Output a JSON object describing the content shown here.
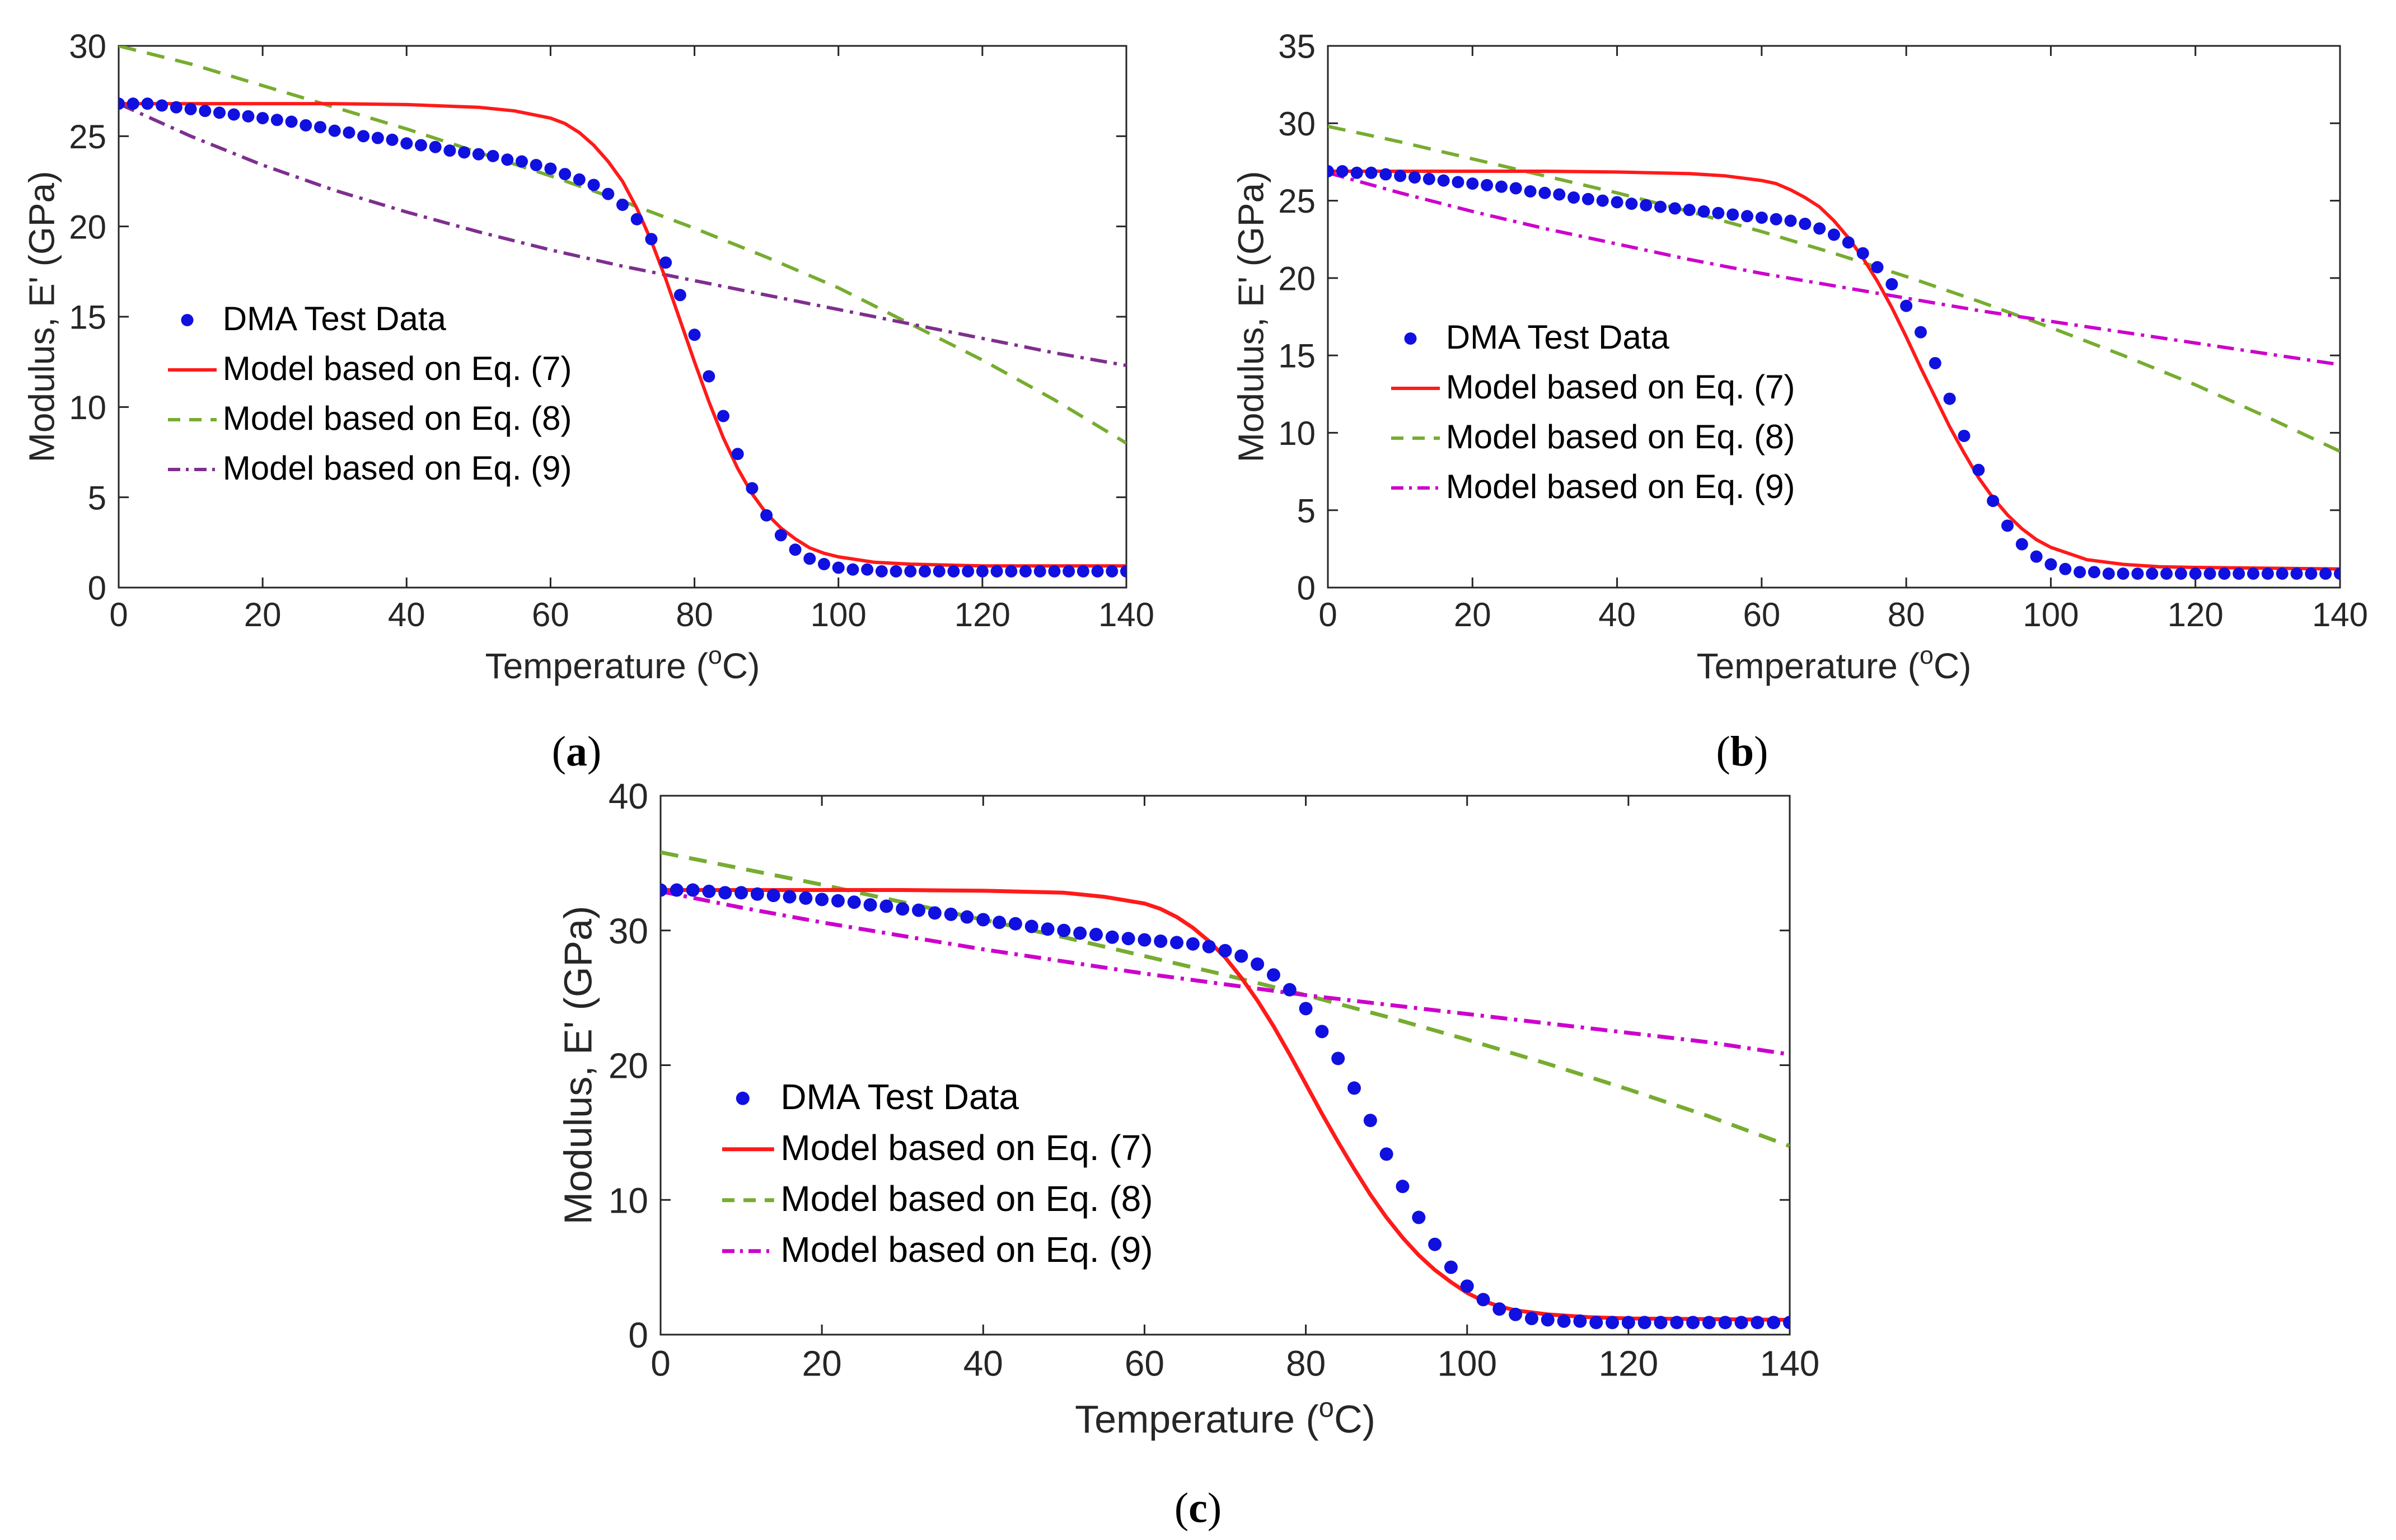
{
  "colors": {
    "dma": "#1010e0",
    "eq7": "#ff1a1a",
    "eq8": "#77ac30",
    "eq9_a": "#7e2f8e",
    "eq9_bc": "#cc00cc",
    "axis": "#262626"
  },
  "chart_data": [
    {
      "id": "a",
      "type": "line",
      "panel_label_open": "(",
      "panel_label_letter": "a",
      "panel_label_close": ")",
      "xlabel": "Temperature (",
      "xlabel_sup": "o",
      "xlabel_unit": "C)",
      "ylabel": "Modulus, E' (GPa)",
      "xlim": [
        0,
        140
      ],
      "ylim": [
        0,
        30
      ],
      "xticks": [
        0,
        20,
        40,
        60,
        80,
        100,
        120,
        140
      ],
      "yticks": [
        0,
        5,
        10,
        15,
        20,
        25,
        30
      ],
      "legend_position": "middle-left",
      "eq9_color_key": "eq9_a",
      "legend": [
        "DMA Test Data",
        "Model based on Eq. (7)",
        "Model based on Eq. (8)",
        "Model based on Eq. (9)"
      ],
      "series": [
        {
          "name": "DMA Test Data",
          "x": [
            0,
            2,
            4,
            6,
            8,
            10,
            12,
            14,
            16,
            18,
            20,
            22,
            24,
            26,
            28,
            30,
            32,
            34,
            36,
            38,
            40,
            42,
            44,
            46,
            48,
            50,
            52,
            54,
            56,
            58,
            60,
            62,
            64,
            66,
            68,
            70,
            72,
            74,
            76,
            78,
            80,
            82,
            84,
            86,
            88,
            90,
            92,
            94,
            96,
            98,
            100,
            102,
            104,
            106,
            108,
            110,
            112,
            114,
            116,
            118,
            120,
            122,
            124,
            126,
            128,
            130,
            132,
            134,
            136,
            138,
            140
          ],
          "y": [
            26.8,
            26.8,
            26.8,
            26.7,
            26.6,
            26.5,
            26.4,
            26.3,
            26.2,
            26.1,
            26.0,
            25.9,
            25.8,
            25.6,
            25.5,
            25.3,
            25.2,
            25.0,
            24.9,
            24.8,
            24.6,
            24.5,
            24.4,
            24.2,
            24.1,
            24.0,
            23.9,
            23.7,
            23.6,
            23.4,
            23.2,
            22.9,
            22.6,
            22.3,
            21.8,
            21.2,
            20.4,
            19.3,
            18.0,
            16.2,
            14.0,
            11.7,
            9.5,
            7.4,
            5.5,
            4.0,
            2.9,
            2.1,
            1.6,
            1.3,
            1.1,
            1.0,
            1.0,
            0.9,
            0.9,
            0.9,
            0.9,
            0.9,
            0.9,
            0.9,
            0.9,
            0.9,
            0.9,
            0.9,
            0.9,
            0.9,
            0.9,
            0.9,
            0.9,
            0.9,
            0.9
          ]
        },
        {
          "name": "Model based on Eq. (7)",
          "x": [
            0,
            10,
            20,
            30,
            40,
            50,
            55,
            60,
            62,
            64,
            66,
            68,
            70,
            72,
            74,
            76,
            78,
            80,
            82,
            84,
            86,
            88,
            90,
            92,
            94,
            96,
            98,
            100,
            105,
            110,
            115,
            120,
            130,
            140
          ],
          "y": [
            26.8,
            26.8,
            26.8,
            26.8,
            26.75,
            26.6,
            26.4,
            26.0,
            25.7,
            25.2,
            24.5,
            23.6,
            22.5,
            21.0,
            19.2,
            17.1,
            14.8,
            12.5,
            10.3,
            8.3,
            6.6,
            5.2,
            4.1,
            3.3,
            2.7,
            2.2,
            1.9,
            1.7,
            1.4,
            1.3,
            1.25,
            1.2,
            1.2,
            1.2
          ]
        },
        {
          "name": "Model based on Eq. (8)",
          "x": [
            0,
            10,
            20,
            30,
            40,
            50,
            60,
            70,
            80,
            90,
            100,
            110,
            120,
            130,
            140
          ],
          "y": [
            30.0,
            29.0,
            27.8,
            26.6,
            25.4,
            24.1,
            22.8,
            21.4,
            19.9,
            18.3,
            16.6,
            14.6,
            12.6,
            10.4,
            8.0
          ]
        },
        {
          "name": "Model based on Eq. (9)",
          "x": [
            0,
            10,
            20,
            30,
            40,
            50,
            60,
            70,
            80,
            90,
            100,
            110,
            120,
            130,
            140
          ],
          "y": [
            26.8,
            25.0,
            23.4,
            22.0,
            20.8,
            19.7,
            18.7,
            17.8,
            17.0,
            16.2,
            15.4,
            14.6,
            13.8,
            13.0,
            12.3
          ]
        }
      ]
    },
    {
      "id": "b",
      "type": "line",
      "panel_label_open": "(",
      "panel_label_letter": "b",
      "panel_label_close": ")",
      "xlabel": "Temperature (",
      "xlabel_sup": "o",
      "xlabel_unit": "C)",
      "ylabel": "Modulus, E' (GPa)",
      "xlim": [
        0,
        140
      ],
      "ylim": [
        0,
        35
      ],
      "xticks": [
        0,
        20,
        40,
        60,
        80,
        100,
        120,
        140
      ],
      "yticks": [
        0,
        5,
        10,
        15,
        20,
        25,
        30,
        35
      ],
      "legend_position": "middle-left",
      "eq9_color_key": "eq9_bc",
      "legend": [
        "DMA Test Data",
        "Model based on Eq. (7)",
        "Model based on Eq. (8)",
        "Model based on Eq. (9)"
      ],
      "series": [
        {
          "name": "DMA Test Data",
          "x": [
            0,
            2,
            4,
            6,
            8,
            10,
            12,
            14,
            16,
            18,
            20,
            22,
            24,
            26,
            28,
            30,
            32,
            34,
            36,
            38,
            40,
            42,
            44,
            46,
            48,
            50,
            52,
            54,
            56,
            58,
            60,
            62,
            64,
            66,
            68,
            70,
            72,
            74,
            76,
            78,
            80,
            82,
            84,
            86,
            88,
            90,
            92,
            94,
            96,
            98,
            100,
            102,
            104,
            106,
            108,
            110,
            112,
            114,
            116,
            118,
            120,
            122,
            124,
            126,
            128,
            130,
            132,
            134,
            136,
            138,
            140
          ],
          "y": [
            26.9,
            26.9,
            26.8,
            26.8,
            26.7,
            26.6,
            26.5,
            26.4,
            26.3,
            26.2,
            26.1,
            26.0,
            25.9,
            25.8,
            25.6,
            25.5,
            25.4,
            25.2,
            25.1,
            25.0,
            24.9,
            24.8,
            24.7,
            24.6,
            24.5,
            24.4,
            24.3,
            24.2,
            24.1,
            24.0,
            23.9,
            23.8,
            23.7,
            23.5,
            23.2,
            22.8,
            22.3,
            21.6,
            20.7,
            19.6,
            18.2,
            16.5,
            14.5,
            12.2,
            9.8,
            7.6,
            5.6,
            4.0,
            2.8,
            2.0,
            1.5,
            1.2,
            1.0,
            1.0,
            0.9,
            0.9,
            0.9,
            0.9,
            0.9,
            0.9,
            0.9,
            0.9,
            0.9,
            0.9,
            0.9,
            0.9,
            0.9,
            0.9,
            0.9,
            0.9,
            0.9
          ]
        },
        {
          "name": "Model based on Eq. (7)",
          "x": [
            0,
            10,
            20,
            30,
            40,
            50,
            55,
            60,
            62,
            64,
            66,
            68,
            70,
            72,
            74,
            76,
            78,
            80,
            82,
            84,
            86,
            88,
            90,
            92,
            94,
            96,
            98,
            100,
            105,
            110,
            115,
            120,
            130,
            140
          ],
          "y": [
            26.9,
            26.9,
            26.9,
            26.9,
            26.85,
            26.75,
            26.6,
            26.3,
            26.1,
            25.7,
            25.2,
            24.6,
            23.7,
            22.6,
            21.3,
            19.8,
            18.1,
            16.2,
            14.2,
            12.3,
            10.4,
            8.7,
            7.1,
            5.8,
            4.7,
            3.8,
            3.1,
            2.6,
            1.8,
            1.5,
            1.35,
            1.3,
            1.25,
            1.2
          ]
        },
        {
          "name": "Model based on Eq. (8)",
          "x": [
            0,
            10,
            20,
            30,
            40,
            50,
            60,
            70,
            80,
            90,
            100,
            110,
            120,
            130,
            140
          ],
          "y": [
            29.8,
            28.8,
            27.7,
            26.6,
            25.5,
            24.3,
            23.0,
            21.6,
            20.1,
            18.5,
            16.8,
            15.0,
            13.1,
            11.0,
            8.8
          ]
        },
        {
          "name": "Model based on Eq. (9)",
          "x": [
            0,
            10,
            20,
            30,
            40,
            50,
            60,
            70,
            80,
            90,
            100,
            110,
            120,
            130,
            140
          ],
          "y": [
            26.8,
            25.5,
            24.3,
            23.2,
            22.2,
            21.2,
            20.3,
            19.5,
            18.7,
            17.9,
            17.2,
            16.5,
            15.8,
            15.1,
            14.4
          ]
        }
      ]
    },
    {
      "id": "c",
      "type": "line",
      "panel_label_open": "(",
      "panel_label_letter": "c",
      "panel_label_close": ")",
      "xlabel": "Temperature (",
      "xlabel_sup": "o",
      "xlabel_unit": "C)",
      "ylabel": "Modulus, E' (GPa)",
      "xlim": [
        0,
        140
      ],
      "ylim": [
        0,
        40
      ],
      "xticks": [
        0,
        20,
        40,
        60,
        80,
        100,
        120,
        140
      ],
      "yticks": [
        0,
        10,
        20,
        30,
        40
      ],
      "legend_position": "middle-left",
      "eq9_color_key": "eq9_bc",
      "legend": [
        "DMA Test Data",
        "Model based on Eq. (7)",
        "Model based on Eq. (8)",
        "Model based on Eq. (9)"
      ],
      "series": [
        {
          "name": "DMA Test Data",
          "x": [
            0,
            2,
            4,
            6,
            8,
            10,
            12,
            14,
            16,
            18,
            20,
            22,
            24,
            26,
            28,
            30,
            32,
            34,
            36,
            38,
            40,
            42,
            44,
            46,
            48,
            50,
            52,
            54,
            56,
            58,
            60,
            62,
            64,
            66,
            68,
            70,
            72,
            74,
            76,
            78,
            80,
            82,
            84,
            86,
            88,
            90,
            92,
            94,
            96,
            98,
            100,
            102,
            104,
            106,
            108,
            110,
            112,
            114,
            116,
            118,
            120,
            122,
            124,
            126,
            128,
            130,
            132,
            134,
            136,
            138,
            140
          ],
          "y": [
            33.0,
            33.0,
            33.0,
            32.9,
            32.8,
            32.8,
            32.7,
            32.6,
            32.5,
            32.4,
            32.3,
            32.2,
            32.1,
            31.9,
            31.8,
            31.6,
            31.5,
            31.3,
            31.2,
            31.0,
            30.8,
            30.6,
            30.5,
            30.3,
            30.1,
            30.0,
            29.8,
            29.7,
            29.5,
            29.4,
            29.3,
            29.2,
            29.1,
            29.0,
            28.8,
            28.5,
            28.1,
            27.5,
            26.7,
            25.6,
            24.2,
            22.5,
            20.5,
            18.3,
            15.9,
            13.4,
            11.0,
            8.7,
            6.7,
            5.0,
            3.6,
            2.6,
            1.9,
            1.5,
            1.2,
            1.1,
            1.0,
            1.0,
            0.9,
            0.9,
            0.9,
            0.9,
            0.9,
            0.9,
            0.9,
            0.9,
            0.9,
            0.9,
            0.9,
            0.9,
            0.9
          ]
        },
        {
          "name": "Model based on Eq. (7)",
          "x": [
            0,
            10,
            20,
            30,
            40,
            50,
            55,
            60,
            62,
            64,
            66,
            68,
            70,
            72,
            74,
            76,
            78,
            80,
            82,
            84,
            86,
            88,
            90,
            92,
            94,
            96,
            98,
            100,
            102,
            104,
            106,
            110,
            115,
            120,
            130,
            140
          ],
          "y": [
            33.0,
            33.0,
            33.0,
            33.0,
            32.95,
            32.8,
            32.5,
            32.0,
            31.6,
            31.0,
            30.2,
            29.2,
            28.0,
            26.5,
            24.8,
            22.9,
            20.8,
            18.6,
            16.4,
            14.3,
            12.3,
            10.4,
            8.7,
            7.2,
            5.9,
            4.8,
            3.9,
            3.1,
            2.5,
            2.1,
            1.8,
            1.5,
            1.3,
            1.2,
            1.15,
            1.1
          ]
        },
        {
          "name": "Model based on Eq. (8)",
          "x": [
            0,
            10,
            20,
            30,
            40,
            50,
            60,
            70,
            80,
            90,
            100,
            110,
            120,
            130,
            140
          ],
          "y": [
            35.8,
            34.6,
            33.4,
            32.1,
            30.8,
            29.5,
            28.1,
            26.7,
            25.2,
            23.6,
            21.9,
            20.1,
            18.2,
            16.2,
            14.0
          ]
        },
        {
          "name": "Model based on Eq. (9)",
          "x": [
            0,
            10,
            20,
            30,
            40,
            50,
            60,
            70,
            80,
            90,
            100,
            110,
            120,
            130,
            140
          ],
          "y": [
            32.9,
            31.7,
            30.6,
            29.6,
            28.6,
            27.7,
            26.8,
            26.0,
            25.2,
            24.5,
            23.8,
            23.1,
            22.4,
            21.7,
            20.8
          ]
        }
      ]
    }
  ]
}
